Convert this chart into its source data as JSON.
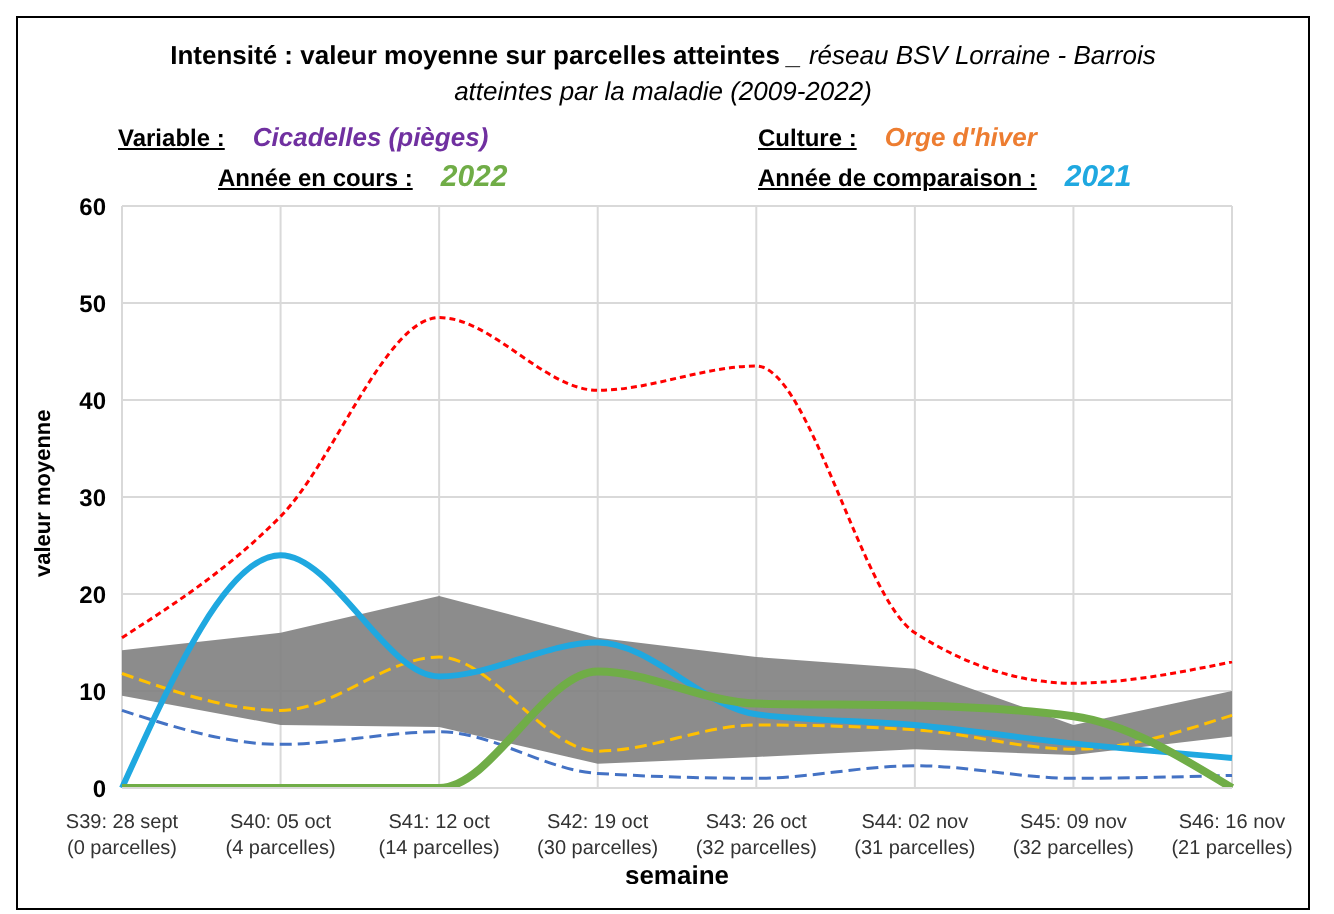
{
  "chart_data": {
    "type": "line",
    "title": "Intensité : valeur moyenne sur parcelles atteintes",
    "subtitle": "_ réseau BSV Lorraine - Barrois atteintes par la maladie (2009-2022)",
    "annotations": [
      "Variable :",
      "Cicadelles (pièges)",
      "Culture :",
      "Orge d'hiver",
      "Année en cours :",
      "2022",
      "Année de comparaison :",
      "2021"
    ],
    "xlabel": "semaine",
    "ylabel": "valeur moyenne",
    "categories": [
      "S39: 28 sept\n(0 parcelles)",
      "S40: 05 oct\n(4 parcelles)",
      "S41: 12 oct\n(14 parcelles)",
      "S42: 19 oct\n(30 parcelles)",
      "S43: 26 oct\n(32 parcelles)",
      "S44: 02 nov\n(31 parcelles)",
      "S45: 09 nov\n(32 parcelles)",
      "S46: 16 nov\n(21 parcelles)"
    ],
    "ylim": [
      0,
      60
    ],
    "yticks": [
      0,
      10,
      20,
      30,
      40,
      50,
      60
    ],
    "grid": true,
    "legend": false,
    "marker": "none",
    "series": [
      {
        "color": "#ff0000",
        "line_style": "dotted",
        "values": [
          15.5,
          28,
          48.5,
          41,
          43.5,
          16,
          10.8,
          13
        ]
      },
      {
        "color": "#4472c4",
        "line_style": "dashed",
        "values": [
          8,
          4.5,
          5.8,
          1.5,
          1,
          2.3,
          1,
          1.3
        ]
      },
      {
        "color": "#ffc000",
        "line_style": "dashed",
        "values": [
          11.8,
          8,
          13.5,
          3.8,
          6.5,
          6,
          4,
          7.5
        ],
        "lower": [
          9.5,
          6.5,
          6.3,
          2.5,
          3.2,
          4,
          3.4,
          5.3
        ],
        "upper": [
          14.2,
          16,
          19.8,
          15.5,
          13.5,
          12.3,
          6.5,
          10
        ]
      },
      {
        "color": "#1fa8e0",
        "line_style": "solid",
        "values": [
          0,
          24,
          11.5,
          15,
          7.6,
          6.5,
          4.6,
          3.1
        ]
      },
      {
        "color": "#70ad47",
        "line_style": "solid",
        "values": [
          0,
          0,
          0,
          12,
          8.7,
          8.5,
          7.4,
          0
        ]
      }
    ]
  }
}
